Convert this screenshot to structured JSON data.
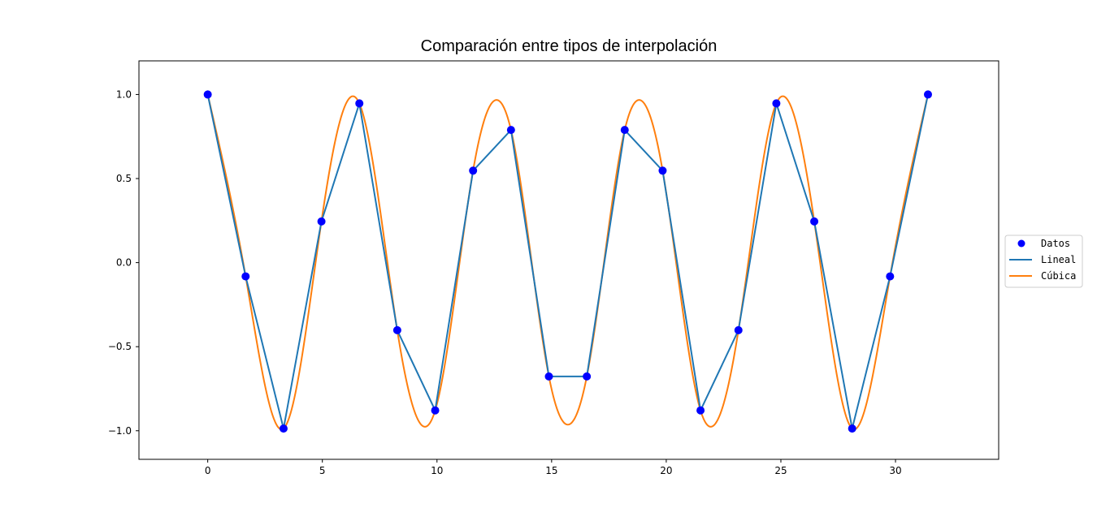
{
  "chart_data": {
    "type": "line",
    "title": "Comparación entre tipos de interpolación",
    "xlabel": "",
    "ylabel": "",
    "xlim": [
      -3,
      34.5
    ],
    "ylim": [
      -1.17,
      1.2
    ],
    "x_ticks": [
      0,
      5,
      10,
      15,
      20,
      25,
      30
    ],
    "x_tick_labels": [
      "0",
      "5",
      "10",
      "15",
      "20",
      "25",
      "30"
    ],
    "y_ticks": [
      -1.0,
      -0.5,
      0.0,
      0.5,
      1.0
    ],
    "y_tick_labels": [
      "−1.0",
      "−0.5",
      "0.0",
      "0.5",
      "1.0"
    ],
    "grid": false,
    "legend_position": "outside-right",
    "x": [
      0,
      1.653,
      3.307,
      4.96,
      6.614,
      8.267,
      9.921,
      11.574,
      13.228,
      14.881,
      16.535,
      18.188,
      19.842,
      21.495,
      23.149,
      24.802,
      26.456,
      28.109,
      29.762,
      31.416
    ],
    "series": [
      {
        "name": "Datos",
        "style": "markers",
        "color": "#0000ff",
        "values": [
          1.0,
          -0.082,
          -0.987,
          0.245,
          0.947,
          -0.402,
          -0.879,
          0.547,
          0.789,
          -0.677,
          -0.677,
          0.789,
          0.547,
          -0.879,
          -0.402,
          0.947,
          0.245,
          -0.987,
          -0.082,
          1.0
        ]
      },
      {
        "name": "Lineal",
        "style": "line",
        "color": "#1f77b4",
        "values": [
          1.0,
          -0.082,
          -0.987,
          0.245,
          0.947,
          -0.402,
          -0.879,
          0.547,
          0.789,
          -0.677,
          -0.677,
          0.789,
          0.547,
          -0.879,
          -0.402,
          0.947,
          0.245,
          -0.987,
          -0.082,
          1.0
        ]
      },
      {
        "name": "Cúbica",
        "style": "smooth",
        "color": "#ff7f0e",
        "values": [
          1.0,
          -0.082,
          -0.987,
          0.245,
          0.947,
          -0.402,
          -0.879,
          0.547,
          0.789,
          -0.677,
          -0.677,
          0.789,
          0.547,
          -0.879,
          -0.402,
          0.947,
          0.245,
          -0.987,
          -0.082,
          1.0
        ]
      }
    ]
  }
}
